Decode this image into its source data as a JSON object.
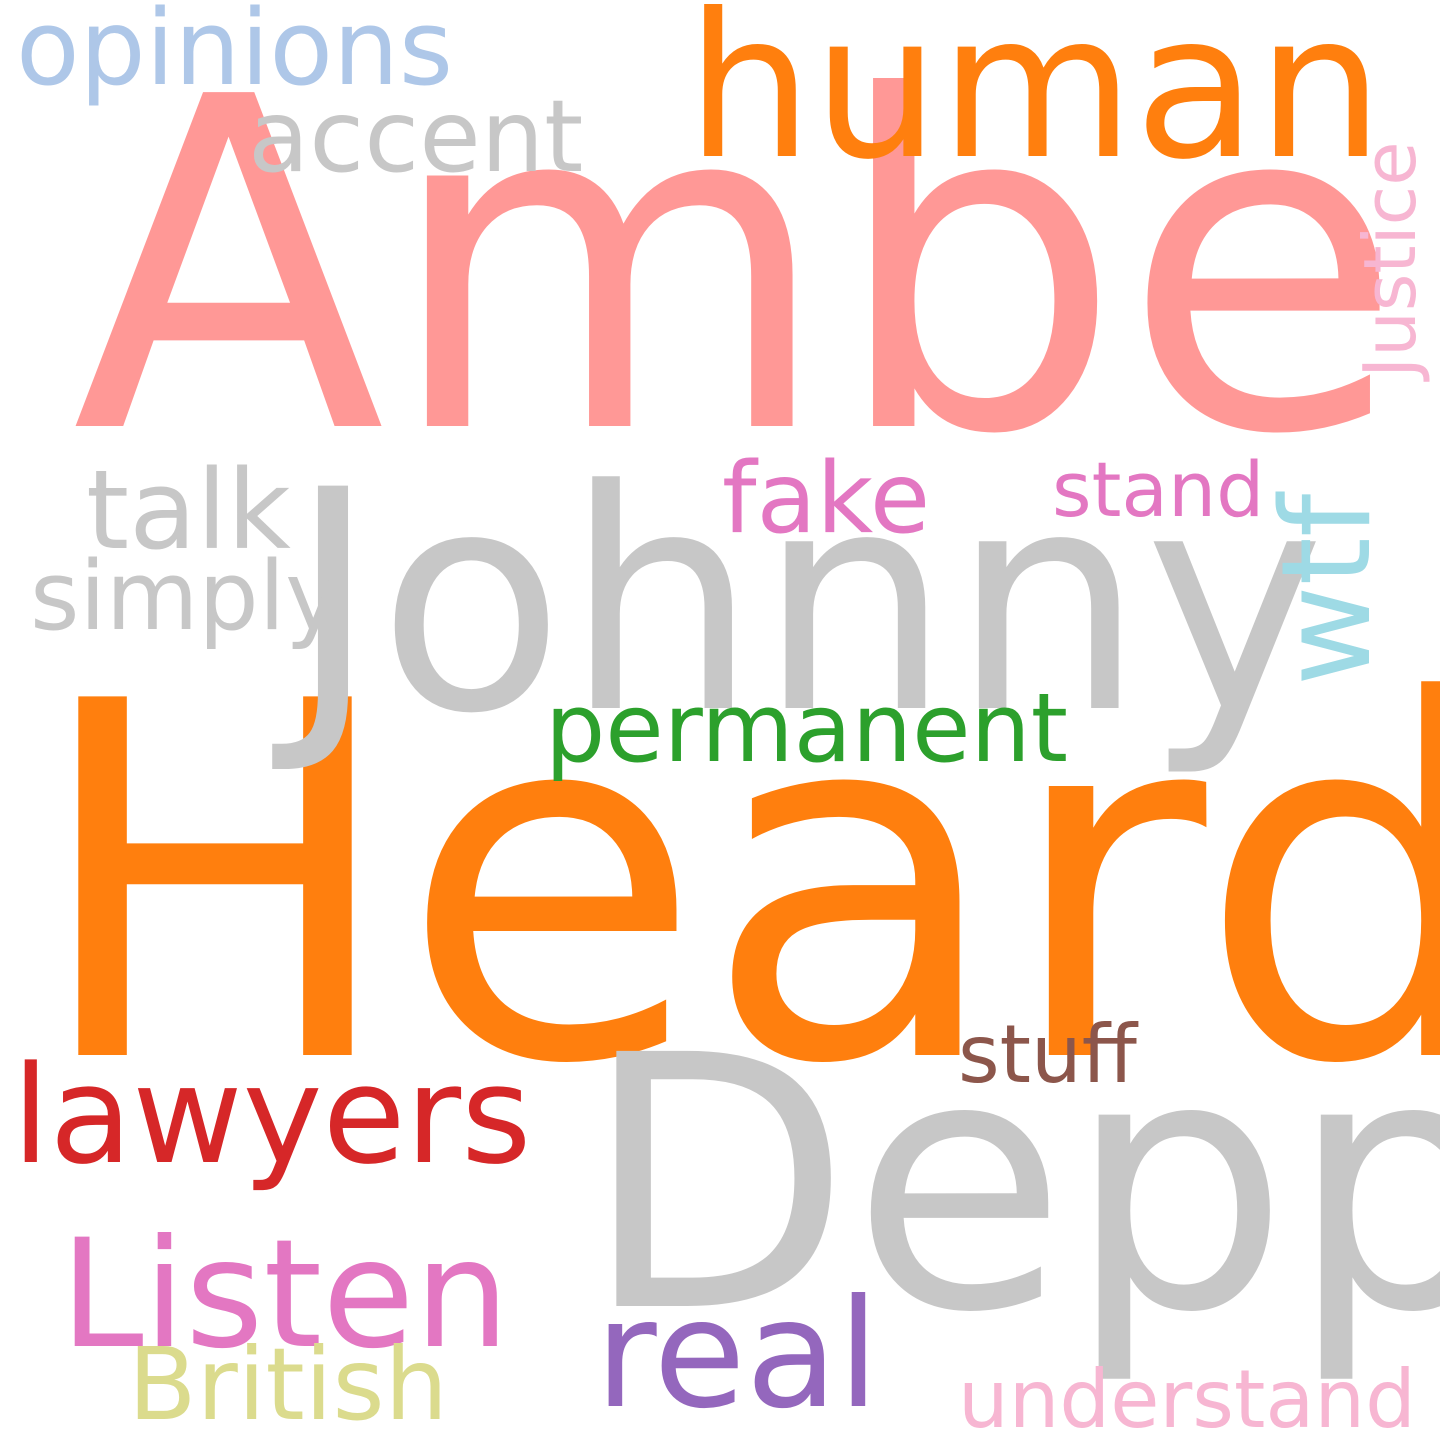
{
  "words": [
    {
      "text": "Heard",
      "color": "#ff7f0e"
    },
    {
      "text": "Amber",
      "color": "#ff9896"
    },
    {
      "text": "Johnny",
      "color": "#c7c7c7"
    },
    {
      "text": "Depp",
      "color": "#c7c7c7"
    },
    {
      "text": "human",
      "color": "#ff7f0e"
    },
    {
      "text": "opinions",
      "color": "#aec7e8"
    },
    {
      "text": "accent",
      "color": "#c7c7c7"
    },
    {
      "text": "Justice",
      "color": "#f7b6d2"
    },
    {
      "text": "wtf",
      "color": "#9edae5"
    },
    {
      "text": "talk",
      "color": "#c7c7c7"
    },
    {
      "text": "simply",
      "color": "#c7c7c7"
    },
    {
      "text": "fake",
      "color": "#e377c2"
    },
    {
      "text": "stand",
      "color": "#e377c2"
    },
    {
      "text": "permanent",
      "color": "#2ca02c"
    },
    {
      "text": "stuff",
      "color": "#8c564b"
    },
    {
      "text": "lawyers",
      "color": "#d62728"
    },
    {
      "text": "Listen",
      "color": "#e377c2"
    },
    {
      "text": "real",
      "color": "#9467bd"
    },
    {
      "text": "British",
      "color": "#dbdb8d"
    },
    {
      "text": "understand",
      "color": "#f7b6d2"
    }
  ]
}
